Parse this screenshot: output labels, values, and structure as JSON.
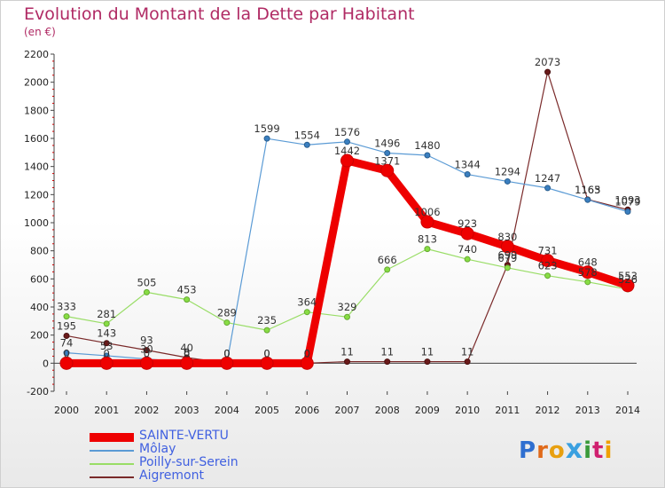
{
  "title": "Evolution du Montant de la Dette par Habitant",
  "subtitle": "(en €)",
  "logo": "Proxiti",
  "chart_data": {
    "type": "line",
    "title": "Evolution du Montant de la Dette par Habitant",
    "ylabel": "(en €)",
    "xlabel": "",
    "x": [
      "2000",
      "2001",
      "2002",
      "2003",
      "2004",
      "2005",
      "2006",
      "2007",
      "2008",
      "2009",
      "2010",
      "2011",
      "2012",
      "2013",
      "2014"
    ],
    "ylim": [
      -200,
      2200
    ],
    "yticks": [
      -200,
      0,
      200,
      400,
      600,
      800,
      1000,
      1200,
      1400,
      1600,
      1800,
      2000,
      2200
    ],
    "grid": false,
    "legend_position": "bottom-left",
    "series": [
      {
        "name": "SAINTE-VERTU",
        "color": "#ee0000",
        "values": [
          0,
          0,
          0,
          0,
          0,
          0,
          0,
          1442,
          1371,
          1006,
          923,
          830,
          731,
          648,
          553
        ]
      },
      {
        "name": "Môlay",
        "color": "#5b9bd5",
        "values": [
          74,
          53,
          30,
          8,
          0,
          1599,
          1554,
          1576,
          1496,
          1480,
          1344,
          1294,
          1247,
          1163,
          1079
        ]
      },
      {
        "name": "Poilly-sur-Serein",
        "color": "#99dd66",
        "values": [
          333,
          281,
          505,
          453,
          289,
          235,
          364,
          329,
          666,
          813,
          740,
          679,
          623,
          578,
          526
        ]
      },
      {
        "name": "Aigremont",
        "color": "#7a2a2a",
        "values": [
          195,
          143,
          93,
          40,
          0,
          0,
          0,
          11,
          11,
          11,
          11,
          699,
          2073,
          1165,
          1093
        ]
      }
    ]
  }
}
